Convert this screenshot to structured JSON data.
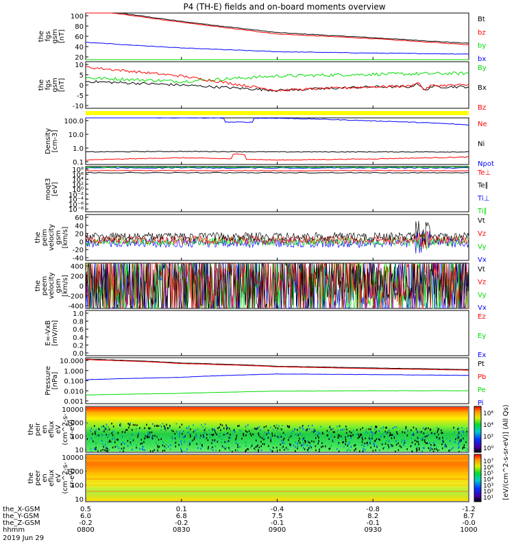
{
  "title": "P4 (TH-E) fields and on-board moments overview",
  "colors": {
    "black": "#000000",
    "red": "#ff0000",
    "green": "#00dd00",
    "blue": "#0000ff",
    "yellow": "#ffff00"
  },
  "panels": [
    {
      "id": "fgs-btot",
      "ylabel": [
        "the",
        "fgs",
        "gsm",
        "[nT]"
      ],
      "ticks": [
        "100",
        "80",
        "60",
        "40",
        "20"
      ],
      "legend": [
        "Bt",
        "bz",
        "by",
        "bx"
      ],
      "legend_colors": [
        "black",
        "red",
        "green",
        "blue"
      ]
    },
    {
      "id": "fgs-comp",
      "ylabel": [
        "the",
        "fgs",
        "gsm",
        "[nT]"
      ],
      "ticks": [
        "10",
        "5",
        "0",
        "-5",
        "-10"
      ],
      "legend": [
        "By",
        "Bx",
        "Bz"
      ],
      "legend_colors": [
        "green",
        "black",
        "red"
      ]
    },
    {
      "id": "density",
      "ylabel": [
        "Density",
        "[cm-3]"
      ],
      "ticks": [
        "100.0",
        "10.0",
        "1.0",
        "0.1"
      ],
      "legend": [
        "Ne",
        "Ni",
        "Npot"
      ],
      "legend_colors": [
        "red",
        "black",
        "blue"
      ]
    },
    {
      "id": "temp",
      "ylabel": [
        "moqt3",
        "[eV]"
      ],
      "ticks": [
        "10⁸",
        "10⁶",
        "10⁴",
        "10²",
        "10⁰",
        "10⁻²",
        "10⁻⁴",
        "10⁻⁶",
        "10⁻⁸"
      ],
      "legend": [
        "Te⊥",
        "Te∥",
        "Ti⊥",
        "Ti∥"
      ],
      "legend_colors": [
        "red",
        "black",
        "blue",
        "green"
      ]
    },
    {
      "id": "peim-vel",
      "ylabel": [
        "the",
        "peim",
        "velocity",
        "gsm",
        "[km/s]"
      ],
      "ticks": [
        "60",
        "40",
        "20",
        "0",
        "-20",
        "-40"
      ],
      "legend": [
        "Vt",
        "Vz",
        "Vy",
        "Vx"
      ],
      "legend_colors": [
        "black",
        "red",
        "green",
        "blue"
      ]
    },
    {
      "id": "peem-vel",
      "ylabel": [
        "the",
        "peem",
        "velocity",
        "gsm",
        "[km/s]"
      ],
      "ticks": [
        "400",
        "200",
        "0",
        "-200",
        "-400"
      ],
      "legend": [
        "Vt",
        "Vz",
        "Vy",
        "Vx"
      ],
      "legend_colors": [
        "black",
        "red",
        "green",
        "blue"
      ]
    },
    {
      "id": "efield",
      "ylabel": [
        "E=-VxB",
        "[mV/m]"
      ],
      "ticks": [
        "1.0",
        "0.8",
        "0.6",
        "0.4",
        "0.2",
        "0.0"
      ],
      "legend": [
        "Ez",
        "Ey",
        "Ex"
      ],
      "legend_colors": [
        "red",
        "green",
        "blue"
      ]
    },
    {
      "id": "pressure",
      "ylabel": [
        "Pressure",
        "[nPa]"
      ],
      "ticks": [
        "10.000",
        "1.000",
        "0.100",
        "0.010",
        "0.001"
      ],
      "legend": [
        "Pt",
        "Pb",
        "Pe",
        "Pi"
      ],
      "legend_colors": [
        "black",
        "red",
        "green",
        "blue"
      ]
    },
    {
      "id": "peir-spec",
      "ylabel": [
        "the",
        "peir",
        "en",
        "eflux",
        "eV",
        "(cm^2-s-",
        "sr-eV)"
      ],
      "ticks": [
        "10000",
        "1000",
        "100",
        "10"
      ]
    },
    {
      "id": "peer-spec",
      "ylabel": [
        "the",
        "peer",
        "en",
        "eflux",
        "eV",
        "(cm^2-s-",
        "sr-eV)"
      ],
      "ticks": [
        "10000",
        "1000",
        "100",
        "10"
      ]
    }
  ],
  "colorbar": {
    "label": "[eV/(cm^2-s-sr-eV)] (All Qs)",
    "ticks_top": [
      "10⁶",
      "10⁴",
      "10²",
      "10⁰"
    ],
    "ticks_bottom": [
      "10⁷",
      "10⁶",
      "10⁵",
      "10⁴",
      "10³",
      "10²",
      "10¹"
    ]
  },
  "xaxis": {
    "rows": [
      {
        "label": "the_X-GSM",
        "values": [
          "0.5",
          "0.1",
          "-0.4",
          "-0.8",
          "-1.2"
        ]
      },
      {
        "label": "the_Y-GSM",
        "values": [
          "6.0",
          "6.8",
          "7.5",
          "8.2",
          "8.7"
        ]
      },
      {
        "label": "the_Z-GSM",
        "values": [
          "-0.2",
          "-0.2",
          "-0.1",
          "-0.1",
          "-0.0"
        ]
      },
      {
        "label": "hhmm",
        "values": [
          "0800",
          "0830",
          "0900",
          "0930",
          "1000"
        ]
      }
    ],
    "date": "2019 Jun 29"
  },
  "chart_data": {
    "type": "line",
    "title": "P4 (TH-E) fields and on-board moments overview",
    "x": [
      "0800",
      "0830",
      "0900",
      "0930",
      "1000"
    ],
    "panels": [
      {
        "name": "fgs-btot",
        "ylim": [
          0,
          100
        ],
        "series": [
          {
            "name": "Bt",
            "color": "black",
            "values": [
              115,
              87,
              63,
              52,
              40
            ]
          },
          {
            "name": "bz",
            "color": "red",
            "values": [
              113,
              85,
              60,
              50,
              37
            ]
          },
          {
            "name": "by",
            "color": "green",
            "values": [
              0,
              0,
              0,
              0,
              0
            ]
          },
          {
            "name": "bx",
            "color": "blue",
            "values": [
              42,
              30,
              22,
              19,
              17
            ]
          }
        ]
      },
      {
        "name": "fgs-comp",
        "ylim": [
          -15,
          12
        ],
        "series": [
          {
            "name": "By",
            "color": "green",
            "values": [
              3,
              1,
              4,
              5,
              5.5
            ]
          },
          {
            "name": "Bx",
            "color": "black",
            "values": [
              1,
              -1,
              -4,
              -2,
              -2
            ]
          },
          {
            "name": "Bz",
            "color": "red",
            "values": [
              9,
              4,
              -4,
              -2,
              -1
            ]
          }
        ]
      },
      {
        "name": "density",
        "log": true,
        "ylim": [
          0.1,
          200
        ],
        "series": [
          {
            "name": "Ne",
            "color": "red",
            "values": [
              0.15,
              0.22,
              0.15,
              0.18,
              0.25
            ]
          },
          {
            "name": "Ni",
            "color": "black",
            "values": [
              0.6,
              0.65,
              0.6,
              0.6,
              0.6
            ]
          },
          {
            "name": "Npot",
            "color": "blue",
            "values": [
              220,
              200,
              190,
              120,
              60
            ]
          }
        ]
      },
      {
        "name": "pressure",
        "log": true,
        "ylim": [
          0.001,
          10
        ],
        "series": [
          {
            "name": "Pt",
            "color": "black",
            "values": [
              9,
              4,
              2,
              1.4,
              1
            ]
          },
          {
            "name": "Pb",
            "color": "red",
            "values": [
              8,
              3.5,
              1.8,
              1.2,
              0.9
            ]
          },
          {
            "name": "Pe",
            "color": "green",
            "values": [
              0.005,
              0.007,
              0.011,
              0.012,
              0.012
            ]
          },
          {
            "name": "Pi",
            "color": "blue",
            "values": [
              0.12,
              0.2,
              0.4,
              0.35,
              0.3
            ]
          }
        ]
      }
    ]
  }
}
